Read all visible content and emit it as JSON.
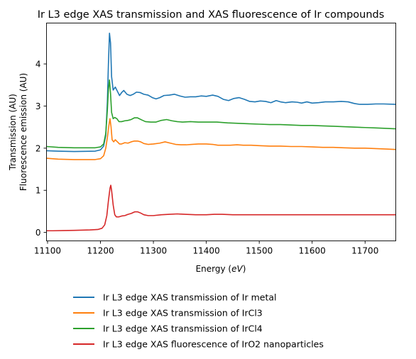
{
  "chart_data": {
    "type": "line",
    "title": "Ir L3 edge XAS transmission and XAS fluorescence of Ir compounds",
    "xlabel_prefix": "Energy (",
    "xlabel_unit": "eV",
    "xlabel_suffix": ")",
    "ylabel_lines": [
      "Transmission (AU)",
      "Fluorescence emission (AU)"
    ],
    "xlim": [
      11098,
      11758
    ],
    "ylim": [
      -0.2,
      4.97
    ],
    "xticks": [
      11100,
      11200,
      11300,
      11400,
      11500,
      11600,
      11700
    ],
    "yticks": [
      0,
      1,
      2,
      3,
      4
    ],
    "grid": false,
    "legend_position": "below",
    "series": [
      {
        "name": "Ir L3 edge XAS transmission of Ir metal",
        "color": "#1f77b4",
        "points": [
          [
            11098,
            1.94
          ],
          [
            11120,
            1.93
          ],
          [
            11150,
            1.92
          ],
          [
            11190,
            1.93
          ],
          [
            11200,
            1.96
          ],
          [
            11206,
            2.05
          ],
          [
            11210,
            2.3
          ],
          [
            11213,
            3.1
          ],
          [
            11215,
            4.0
          ],
          [
            11217,
            4.73
          ],
          [
            11219,
            4.5
          ],
          [
            11221,
            3.7
          ],
          [
            11224,
            3.38
          ],
          [
            11228,
            3.45
          ],
          [
            11232,
            3.35
          ],
          [
            11236,
            3.25
          ],
          [
            11240,
            3.32
          ],
          [
            11244,
            3.37
          ],
          [
            11250,
            3.28
          ],
          [
            11256,
            3.25
          ],
          [
            11262,
            3.28
          ],
          [
            11268,
            3.33
          ],
          [
            11275,
            3.32
          ],
          [
            11282,
            3.28
          ],
          [
            11290,
            3.26
          ],
          [
            11298,
            3.2
          ],
          [
            11305,
            3.17
          ],
          [
            11312,
            3.2
          ],
          [
            11320,
            3.25
          ],
          [
            11330,
            3.26
          ],
          [
            11340,
            3.28
          ],
          [
            11350,
            3.24
          ],
          [
            11360,
            3.21
          ],
          [
            11370,
            3.22
          ],
          [
            11380,
            3.22
          ],
          [
            11390,
            3.24
          ],
          [
            11400,
            3.23
          ],
          [
            11412,
            3.26
          ],
          [
            11422,
            3.23
          ],
          [
            11432,
            3.16
          ],
          [
            11442,
            3.13
          ],
          [
            11452,
            3.18
          ],
          [
            11462,
            3.2
          ],
          [
            11472,
            3.16
          ],
          [
            11482,
            3.11
          ],
          [
            11492,
            3.1
          ],
          [
            11502,
            3.12
          ],
          [
            11512,
            3.11
          ],
          [
            11522,
            3.08
          ],
          [
            11532,
            3.13
          ],
          [
            11540,
            3.1
          ],
          [
            11550,
            3.08
          ],
          [
            11562,
            3.1
          ],
          [
            11572,
            3.09
          ],
          [
            11580,
            3.07
          ],
          [
            11590,
            3.1
          ],
          [
            11600,
            3.07
          ],
          [
            11612,
            3.08
          ],
          [
            11625,
            3.1
          ],
          [
            11640,
            3.1
          ],
          [
            11655,
            3.11
          ],
          [
            11668,
            3.1
          ],
          [
            11680,
            3.06
          ],
          [
            11690,
            3.04
          ],
          [
            11705,
            3.04
          ],
          [
            11720,
            3.05
          ],
          [
            11735,
            3.05
          ],
          [
            11758,
            3.04
          ]
        ]
      },
      {
        "name": "Ir L3 edge XAS transmission of IrCl3",
        "color": "#ff7f0e",
        "points": [
          [
            11098,
            1.76
          ],
          [
            11120,
            1.74
          ],
          [
            11150,
            1.73
          ],
          [
            11190,
            1.73
          ],
          [
            11200,
            1.75
          ],
          [
            11206,
            1.82
          ],
          [
            11210,
            2.0
          ],
          [
            11213,
            2.25
          ],
          [
            11216,
            2.55
          ],
          [
            11218,
            2.7
          ],
          [
            11220,
            2.5
          ],
          [
            11222,
            2.2
          ],
          [
            11225,
            2.15
          ],
          [
            11228,
            2.2
          ],
          [
            11232,
            2.15
          ],
          [
            11236,
            2.1
          ],
          [
            11240,
            2.1
          ],
          [
            11246,
            2.13
          ],
          [
            11252,
            2.12
          ],
          [
            11258,
            2.15
          ],
          [
            11264,
            2.17
          ],
          [
            11270,
            2.17
          ],
          [
            11276,
            2.15
          ],
          [
            11282,
            2.11
          ],
          [
            11290,
            2.09
          ],
          [
            11300,
            2.1
          ],
          [
            11312,
            2.12
          ],
          [
            11322,
            2.15
          ],
          [
            11332,
            2.12
          ],
          [
            11342,
            2.09
          ],
          [
            11352,
            2.08
          ],
          [
            11362,
            2.08
          ],
          [
            11372,
            2.09
          ],
          [
            11385,
            2.1
          ],
          [
            11400,
            2.1
          ],
          [
            11412,
            2.09
          ],
          [
            11422,
            2.07
          ],
          [
            11432,
            2.07
          ],
          [
            11445,
            2.07
          ],
          [
            11458,
            2.08
          ],
          [
            11470,
            2.07
          ],
          [
            11485,
            2.07
          ],
          [
            11500,
            2.06
          ],
          [
            11520,
            2.05
          ],
          [
            11540,
            2.05
          ],
          [
            11560,
            2.04
          ],
          [
            11580,
            2.04
          ],
          [
            11600,
            2.03
          ],
          [
            11620,
            2.02
          ],
          [
            11640,
            2.02
          ],
          [
            11660,
            2.01
          ],
          [
            11680,
            2.0
          ],
          [
            11700,
            2.0
          ],
          [
            11720,
            1.99
          ],
          [
            11740,
            1.98
          ],
          [
            11758,
            1.97
          ]
        ]
      },
      {
        "name": "Ir L3 edge XAS transmission of IrCl4",
        "color": "#2ca02c",
        "points": [
          [
            11098,
            2.04
          ],
          [
            11120,
            2.02
          ],
          [
            11150,
            2.01
          ],
          [
            11190,
            2.01
          ],
          [
            11200,
            2.03
          ],
          [
            11206,
            2.1
          ],
          [
            11210,
            2.35
          ],
          [
            11213,
            2.9
          ],
          [
            11215,
            3.4
          ],
          [
            11217,
            3.62
          ],
          [
            11219,
            3.3
          ],
          [
            11221,
            2.85
          ],
          [
            11224,
            2.7
          ],
          [
            11227,
            2.73
          ],
          [
            11231,
            2.7
          ],
          [
            11235,
            2.63
          ],
          [
            11240,
            2.63
          ],
          [
            11246,
            2.65
          ],
          [
            11252,
            2.66
          ],
          [
            11258,
            2.68
          ],
          [
            11264,
            2.72
          ],
          [
            11270,
            2.72
          ],
          [
            11278,
            2.67
          ],
          [
            11285,
            2.63
          ],
          [
            11295,
            2.62
          ],
          [
            11305,
            2.62
          ],
          [
            11315,
            2.66
          ],
          [
            11325,
            2.68
          ],
          [
            11335,
            2.65
          ],
          [
            11345,
            2.63
          ],
          [
            11355,
            2.62
          ],
          [
            11370,
            2.63
          ],
          [
            11385,
            2.62
          ],
          [
            11400,
            2.62
          ],
          [
            11420,
            2.62
          ],
          [
            11440,
            2.6
          ],
          [
            11460,
            2.59
          ],
          [
            11480,
            2.58
          ],
          [
            11500,
            2.57
          ],
          [
            11520,
            2.56
          ],
          [
            11540,
            2.56
          ],
          [
            11560,
            2.55
          ],
          [
            11580,
            2.54
          ],
          [
            11600,
            2.54
          ],
          [
            11620,
            2.53
          ],
          [
            11640,
            2.52
          ],
          [
            11660,
            2.51
          ],
          [
            11680,
            2.5
          ],
          [
            11700,
            2.49
          ],
          [
            11720,
            2.48
          ],
          [
            11740,
            2.47
          ],
          [
            11758,
            2.46
          ]
        ]
      },
      {
        "name": "Ir L3 edge XAS fluorescence of IrO2 nanoparticles",
        "color": "#d62728",
        "points": [
          [
            11098,
            0.04
          ],
          [
            11110,
            0.04
          ],
          [
            11130,
            0.045
          ],
          [
            11150,
            0.05
          ],
          [
            11180,
            0.06
          ],
          [
            11195,
            0.07
          ],
          [
            11203,
            0.1
          ],
          [
            11208,
            0.18
          ],
          [
            11212,
            0.4
          ],
          [
            11215,
            0.75
          ],
          [
            11218,
            1.05
          ],
          [
            11219.5,
            1.12
          ],
          [
            11221,
            1.0
          ],
          [
            11224,
            0.65
          ],
          [
            11227,
            0.42
          ],
          [
            11230,
            0.37
          ],
          [
            11235,
            0.37
          ],
          [
            11240,
            0.39
          ],
          [
            11246,
            0.4
          ],
          [
            11252,
            0.43
          ],
          [
            11258,
            0.45
          ],
          [
            11265,
            0.49
          ],
          [
            11270,
            0.49
          ],
          [
            11276,
            0.46
          ],
          [
            11282,
            0.42
          ],
          [
            11290,
            0.4
          ],
          [
            11300,
            0.4
          ],
          [
            11315,
            0.42
          ],
          [
            11330,
            0.43
          ],
          [
            11345,
            0.44
          ],
          [
            11360,
            0.43
          ],
          [
            11380,
            0.42
          ],
          [
            11400,
            0.42
          ],
          [
            11415,
            0.43
          ],
          [
            11430,
            0.43
          ],
          [
            11450,
            0.42
          ],
          [
            11480,
            0.42
          ],
          [
            11520,
            0.42
          ],
          [
            11560,
            0.42
          ],
          [
            11600,
            0.42
          ],
          [
            11650,
            0.42
          ],
          [
            11700,
            0.42
          ],
          [
            11758,
            0.42
          ]
        ]
      }
    ]
  }
}
